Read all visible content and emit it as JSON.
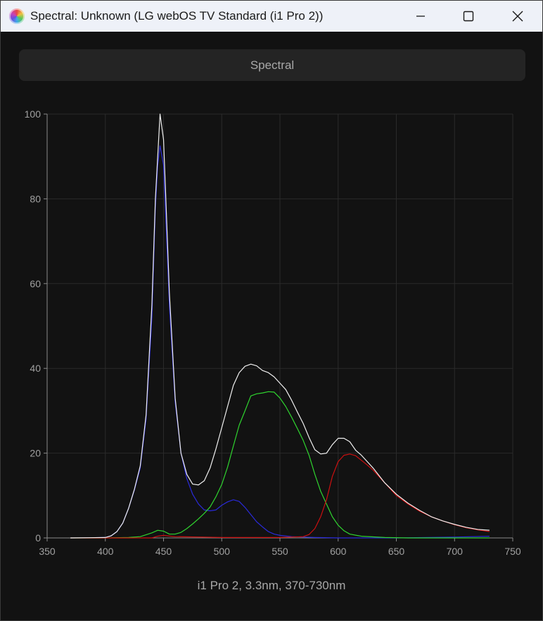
{
  "window": {
    "title": "Spectral: Unknown (LG webOS TV Standard (i1 Pro 2))"
  },
  "icons": {
    "app": "color-wheel-icon",
    "minimize": "minimize-icon",
    "maximize": "maximize-icon",
    "close": "close-icon"
  },
  "tabs": [
    {
      "label": "Spectral"
    }
  ],
  "chart_data": {
    "type": "line",
    "xlabel": "i1 Pro 2, 3.3nm, 370-730nm",
    "ylabel": "",
    "xlim": [
      350,
      750
    ],
    "ylim": [
      0,
      100
    ],
    "xticks": [
      350,
      400,
      450,
      500,
      550,
      600,
      650,
      700,
      750
    ],
    "yticks": [
      0,
      20,
      40,
      60,
      80,
      100
    ],
    "grid": true,
    "background": "#121212",
    "grid_color": "#2a2a2a",
    "series": [
      {
        "color": "#f0f0f0",
        "x": [
          370,
          400,
          405,
          410,
          415,
          420,
          425,
          430,
          435,
          440,
          443,
          445,
          447,
          450,
          452,
          455,
          460,
          465,
          470,
          475,
          480,
          485,
          490,
          495,
          500,
          505,
          510,
          515,
          520,
          525,
          530,
          535,
          540,
          545,
          550,
          555,
          560,
          565,
          570,
          575,
          580,
          585,
          590,
          595,
          600,
          605,
          610,
          615,
          620,
          625,
          630,
          640,
          650,
          660,
          670,
          680,
          690,
          700,
          710,
          720,
          730
        ],
        "y": [
          0,
          0.1,
          0.5,
          1.5,
          3.5,
          7,
          11.5,
          17,
          29,
          55,
          80,
          90,
          100,
          94,
          80,
          58,
          33,
          20,
          15,
          12.7,
          12.5,
          13.5,
          16.5,
          21,
          26,
          31,
          36,
          39,
          40.5,
          41,
          40.6,
          39.5,
          39,
          38,
          36.5,
          35,
          32.5,
          29.7,
          27,
          23.7,
          20.8,
          19.8,
          20,
          22,
          23.5,
          23.5,
          22.7,
          20.7,
          19.5,
          18,
          16.5,
          13,
          10.3,
          8.2,
          6.5,
          5,
          4,
          3.2,
          2.5,
          2,
          1.8
        ]
      },
      {
        "color": "#2a2ad8",
        "x": [
          370,
          400,
          405,
          410,
          415,
          420,
          425,
          430,
          435,
          440,
          443,
          445,
          447,
          450,
          452,
          455,
          460,
          465,
          470,
          475,
          480,
          485,
          490,
          495,
          500,
          505,
          510,
          515,
          520,
          525,
          530,
          535,
          540,
          545,
          550,
          560,
          570,
          580,
          600,
          650,
          700,
          730
        ],
        "y": [
          0,
          0.1,
          0.5,
          1.5,
          3.5,
          7,
          11.3,
          16.5,
          28,
          52,
          78,
          88,
          92.5,
          88,
          75,
          55,
          32,
          20,
          14,
          10.3,
          8,
          6.6,
          6.4,
          6.6,
          7.7,
          8.5,
          9,
          8.6,
          7.2,
          5.5,
          3.8,
          2.6,
          1.5,
          0.9,
          0.6,
          0.3,
          0.2,
          0.1,
          0,
          0,
          0.2,
          0.4
        ]
      },
      {
        "color": "#2fd42f",
        "x": [
          370,
          400,
          420,
          430,
          440,
          445,
          450,
          455,
          460,
          465,
          470,
          475,
          480,
          485,
          490,
          495,
          500,
          505,
          510,
          515,
          520,
          525,
          530,
          535,
          540,
          545,
          550,
          555,
          560,
          565,
          570,
          575,
          580,
          585,
          590,
          595,
          600,
          605,
          610,
          620,
          640,
          660,
          700,
          730
        ],
        "y": [
          0,
          0,
          0.1,
          0.3,
          1.2,
          1.8,
          1.6,
          0.9,
          0.9,
          1.3,
          2.2,
          3.3,
          4.5,
          5.8,
          7.3,
          9.7,
          12.6,
          16.7,
          21.7,
          26.6,
          30,
          33.5,
          34,
          34.2,
          34.5,
          34.4,
          33,
          31,
          28.5,
          25.8,
          23,
          19.5,
          15,
          11,
          8,
          5,
          3,
          1.7,
          0.9,
          0.4,
          0.1,
          0,
          0,
          0
        ]
      },
      {
        "color": "#cc1010",
        "x": [
          370,
          440,
          445,
          450,
          460,
          500,
          550,
          570,
          575,
          580,
          585,
          590,
          595,
          600,
          605,
          610,
          615,
          620,
          625,
          630,
          640,
          650,
          660,
          670,
          680,
          690,
          700,
          710,
          720,
          730
        ],
        "y": [
          0,
          0,
          0.4,
          0.6,
          0.3,
          0.1,
          0.1,
          0.3,
          0.8,
          2.2,
          5,
          9,
          14.5,
          18,
          19.5,
          19.8,
          19.4,
          18.3,
          17.2,
          16,
          13,
          10,
          8,
          6.3,
          5,
          4,
          3.1,
          2.4,
          1.9,
          1.5
        ]
      }
    ]
  }
}
